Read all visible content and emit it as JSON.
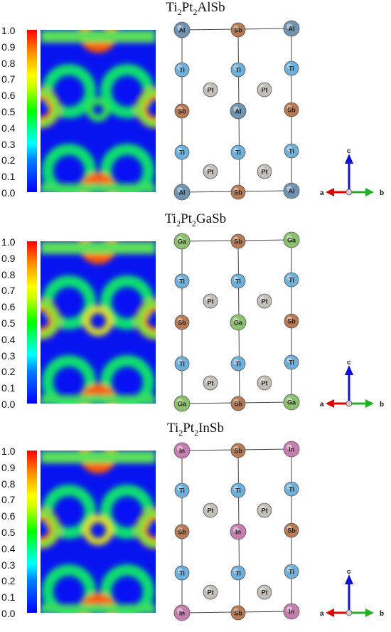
{
  "panels": [
    {
      "title": {
        "parts": [
          [
            "Ti",
            ""
          ],
          [
            "2",
            "sub"
          ],
          [
            "Pt",
            ""
          ],
          [
            "2",
            "sub"
          ],
          [
            "AlSb",
            ""
          ]
        ]
      },
      "site_labels": {
        "corner": "Al",
        "mid": "Sb",
        "center": "Al"
      },
      "colors": {
        "corner": "#6f93b0",
        "center": "#6f93b0"
      }
    },
    {
      "title": {
        "parts": [
          [
            "Ti",
            ""
          ],
          [
            "2",
            "sub"
          ],
          [
            "Pt",
            ""
          ],
          [
            "2",
            "sub"
          ],
          [
            "GaSb",
            ""
          ]
        ]
      },
      "site_labels": {
        "corner": "Ga",
        "mid": "Sb",
        "center": "Ga"
      },
      "colors": {
        "corner": "#8cbf6e",
        "center": "#8cbf6e"
      }
    },
    {
      "title": {
        "parts": [
          [
            "Ti",
            ""
          ],
          [
            "2",
            "sub"
          ],
          [
            "Pt",
            ""
          ],
          [
            "2",
            "sub"
          ],
          [
            "InSb",
            ""
          ]
        ]
      },
      "site_labels": {
        "corner": "In",
        "mid": "Sb",
        "center": "In"
      },
      "colors": {
        "corner": "#c57fae",
        "center": "#c57fae"
      }
    }
  ],
  "colorbar_ticks": [
    "1.0",
    "0.9",
    "0.8",
    "0.7",
    "0.6",
    "0.5",
    "0.4",
    "0.3",
    "0.2",
    "0.1",
    "0.0"
  ],
  "atoms": {
    "ti": "Ti",
    "pt": "Pt",
    "sb": "Sb"
  },
  "atom_colors": {
    "ti": "#6eb0dc",
    "pt": "#c4bfb8",
    "sb": "#b87a52"
  },
  "axis_labels": {
    "a": "a",
    "b": "b",
    "c": "c"
  },
  "axis_colors": {
    "a": "#e00000",
    "b": "#22b022",
    "c": "#1010d0"
  }
}
